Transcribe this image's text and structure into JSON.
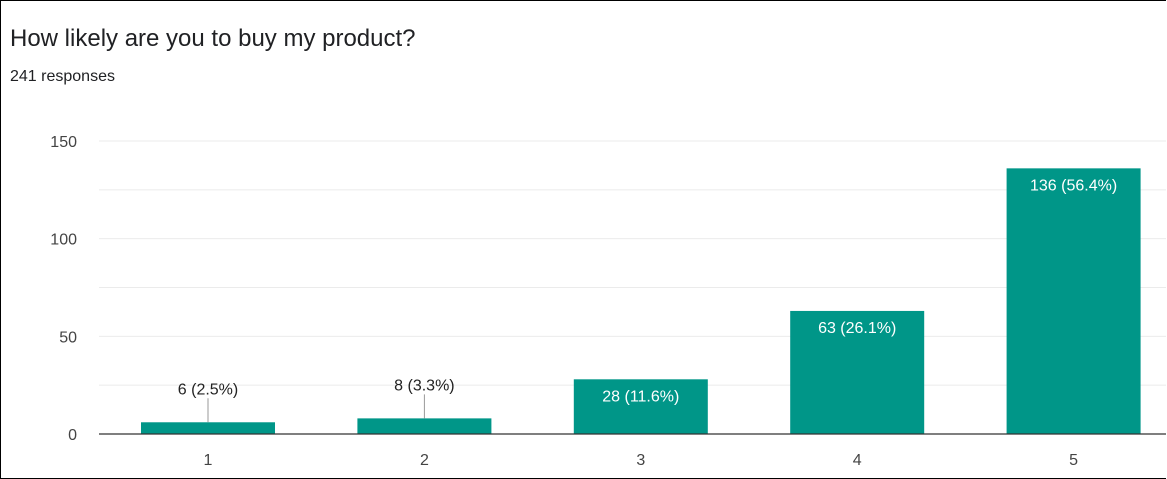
{
  "question": {
    "title": "How likely are you to buy my product?",
    "responses": "241 responses"
  },
  "colors": {
    "bar": "#009688",
    "gridline": "#ebebeb",
    "axis": "#333333",
    "label_inside": "#ffffff",
    "label_outside": "#222222"
  },
  "chart_data": {
    "type": "bar",
    "title": "How likely are you to buy my product?",
    "subtitle": "241 responses",
    "xlabel": "",
    "ylabel": "",
    "categories": [
      "1",
      "2",
      "3",
      "4",
      "5"
    ],
    "values": [
      6,
      8,
      28,
      63,
      136
    ],
    "data_labels": [
      "6 (2.5%)",
      "8 (3.3%)",
      "28 (11.6%)",
      "63 (26.1%)",
      "136 (56.4%)"
    ],
    "ylim": [
      0,
      150
    ],
    "yticks": [
      "0",
      "50",
      "100",
      "150"
    ],
    "grid": true,
    "legend": "none"
  }
}
